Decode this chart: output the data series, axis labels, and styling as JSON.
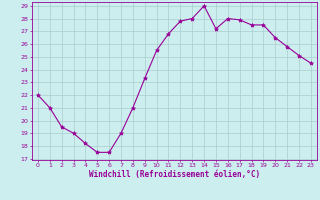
{
  "x": [
    0,
    1,
    2,
    3,
    4,
    5,
    6,
    7,
    8,
    9,
    10,
    11,
    12,
    13,
    14,
    15,
    16,
    17,
    18,
    19,
    20,
    21,
    22,
    23
  ],
  "y": [
    22,
    21,
    19.5,
    19,
    18.2,
    17.5,
    17.5,
    19,
    21,
    23.3,
    25.5,
    26.8,
    27.8,
    28.0,
    29.0,
    27.2,
    28.0,
    27.9,
    27.5,
    27.5,
    26.5,
    25.8,
    25.1,
    24.5
  ],
  "line_color": "#990099",
  "marker": "*",
  "marker_size": 3,
  "bg_color": "#cceeee",
  "grid_color": "#aacccc",
  "xlabel": "Windchill (Refroidissement éolien,°C)",
  "xlabel_color": "#990099",
  "ylim": [
    17,
    29
  ],
  "xlim": [
    -0.5,
    23.5
  ],
  "yticks": [
    17,
    18,
    19,
    20,
    21,
    22,
    23,
    24,
    25,
    26,
    27,
    28,
    29
  ],
  "xticks": [
    0,
    1,
    2,
    3,
    4,
    5,
    6,
    7,
    8,
    9,
    10,
    11,
    12,
    13,
    14,
    15,
    16,
    17,
    18,
    19,
    20,
    21,
    22,
    23
  ],
  "tick_color": "#990099",
  "tick_fontsize": 4.5,
  "xlabel_fontsize": 5.5,
  "axis_line_color": "#990099",
  "linewidth": 0.8
}
